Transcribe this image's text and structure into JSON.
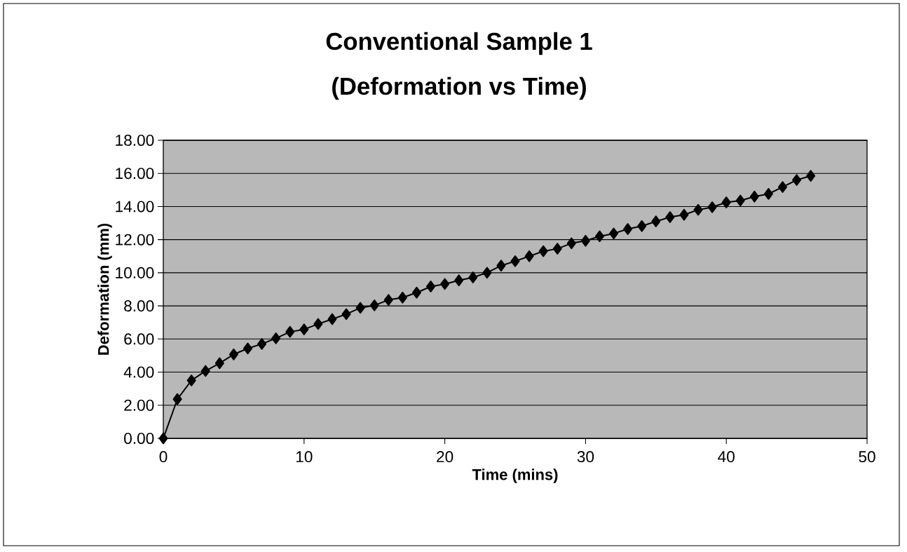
{
  "chart_data": {
    "type": "line",
    "title": "Conventional Sample 1",
    "subtitle": "(Deformation vs Time)",
    "xlabel": "Time (mins)",
    "ylabel": "Deformation (mm)",
    "x": [
      0,
      1,
      2,
      3,
      4,
      5,
      6,
      7,
      8,
      9,
      10,
      11,
      12,
      13,
      14,
      15,
      16,
      17,
      18,
      19,
      20,
      21,
      22,
      23,
      24,
      25,
      26,
      27,
      28,
      29,
      30,
      31,
      32,
      33,
      34,
      35,
      36,
      37,
      38,
      39,
      40,
      41,
      42,
      43,
      44,
      45,
      46
    ],
    "series": [
      {
        "color": "#000000",
        "values": [
          0,
          2.37,
          3.5,
          4.07,
          4.54,
          5.07,
          5.43,
          5.7,
          6.04,
          6.43,
          6.58,
          6.91,
          7.2,
          7.5,
          7.88,
          8.03,
          8.36,
          8.5,
          8.8,
          9.17,
          9.32,
          9.54,
          9.72,
          10.0,
          10.43,
          10.7,
          11.0,
          11.3,
          11.45,
          11.78,
          11.93,
          12.2,
          12.37,
          12.64,
          12.82,
          13.1,
          13.36,
          13.5,
          13.8,
          13.96,
          14.25,
          14.36,
          14.6,
          14.76,
          15.18,
          15.6,
          15.85
        ]
      }
    ],
    "xlim": [
      0,
      50
    ],
    "xticks": [
      0,
      10,
      20,
      30,
      40,
      50
    ],
    "ylim": [
      0,
      18
    ],
    "yticks": [
      {
        "value": 0,
        "label": "0.00"
      },
      {
        "value": 2,
        "label": "2.00"
      },
      {
        "value": 4,
        "label": "4.00"
      },
      {
        "value": 6,
        "label": "6.00"
      },
      {
        "value": 8,
        "label": "8.00"
      },
      {
        "value": 10,
        "label": "10.00"
      },
      {
        "value": 12,
        "label": "12.00"
      },
      {
        "value": 14,
        "label": "14.00"
      },
      {
        "value": 16,
        "label": "16.00"
      },
      {
        "value": 18,
        "label": "18.00"
      }
    ],
    "grid": "y",
    "marker": "diamond",
    "line_style": "solid"
  }
}
